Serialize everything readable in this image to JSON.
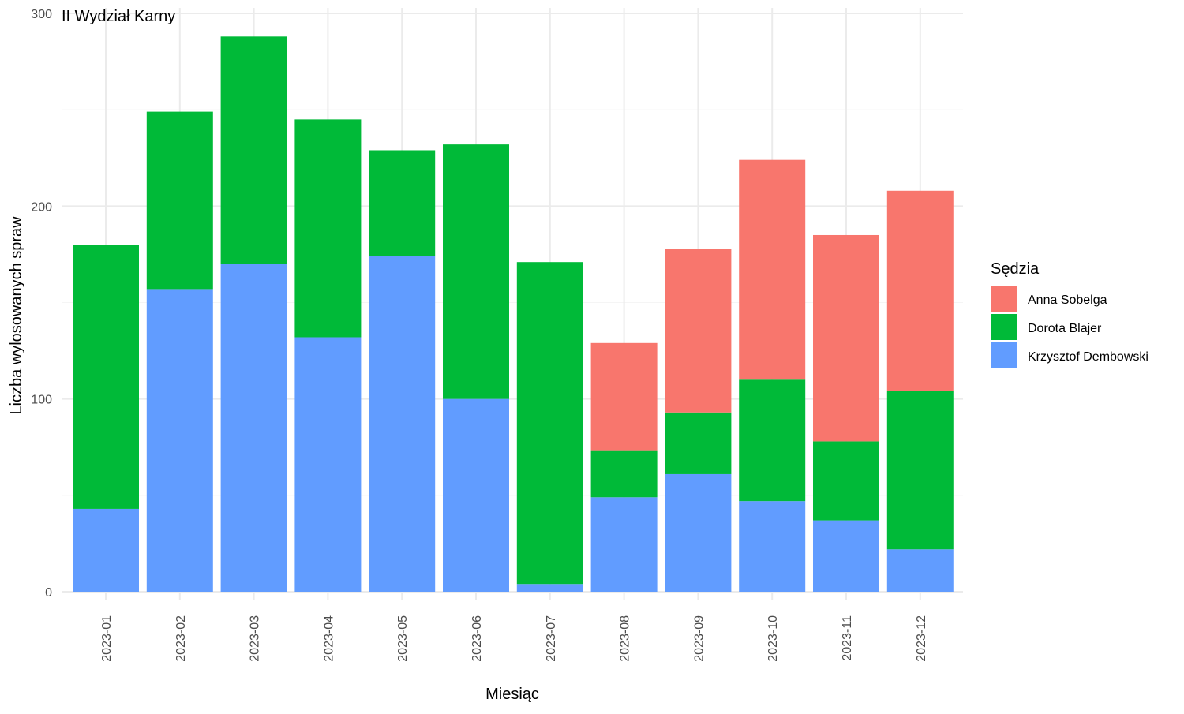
{
  "chart_data": {
    "type": "bar",
    "stacked": true,
    "title": "II Wydział Karny",
    "xlabel": "Miesiąc",
    "ylabel": "Liczba wylosowanych spraw",
    "ylim": [
      0,
      300
    ],
    "yticks": [
      0,
      100,
      200,
      300
    ],
    "grid": true,
    "legend_title": "Sędzia",
    "legend_position": "right",
    "categories": [
      "2023-01",
      "2023-02",
      "2023-03",
      "2023-04",
      "2023-05",
      "2023-06",
      "2023-07",
      "2023-08",
      "2023-09",
      "2023-10",
      "2023-11",
      "2023-12"
    ],
    "series": [
      {
        "name": "Krzysztof Dembowski",
        "color": "#619CFF",
        "values": [
          43,
          157,
          170,
          132,
          174,
          100,
          4,
          49,
          61,
          47,
          37,
          22
        ]
      },
      {
        "name": "Dorota Blajer",
        "color": "#00BA38",
        "values": [
          137,
          92,
          118,
          113,
          55,
          132,
          167,
          24,
          32,
          63,
          41,
          82
        ]
      },
      {
        "name": "Anna Sobelga",
        "color": "#F8766D",
        "values": [
          0,
          0,
          0,
          0,
          0,
          0,
          0,
          56,
          85,
          114,
          107,
          104
        ]
      }
    ],
    "legend_order": [
      "Anna Sobelga",
      "Dorota Blajer",
      "Krzysztof Dembowski"
    ]
  }
}
